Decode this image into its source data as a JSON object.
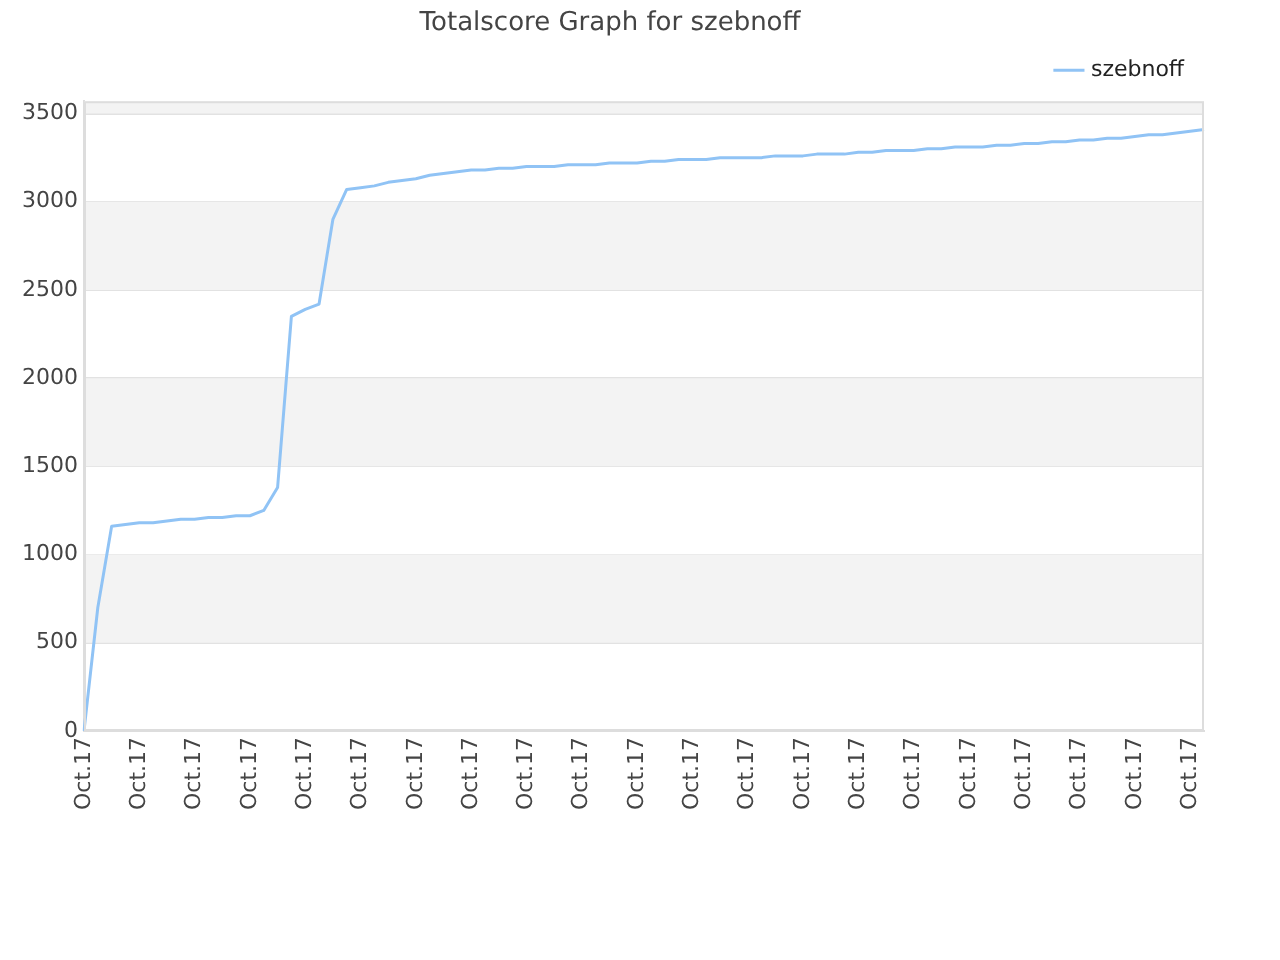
{
  "chart_data": {
    "type": "line",
    "title": "Totalscore Graph for szebnoff",
    "categories": [
      "Oct.17",
      null,
      null,
      null,
      "Oct.17",
      null,
      null,
      null,
      "Oct.17",
      null,
      null,
      null,
      "Oct.17",
      null,
      null,
      null,
      "Oct.17",
      null,
      null,
      null,
      "Oct.17",
      null,
      null,
      null,
      "Oct.17",
      null,
      null,
      null,
      "Oct.17",
      null,
      null,
      null,
      "Oct.17",
      null,
      null,
      null,
      "Oct.17",
      null,
      null,
      null,
      "Oct.17",
      null,
      null,
      null,
      "Oct.17",
      null,
      null,
      null,
      "Oct.17",
      null,
      null,
      null,
      "Oct.17",
      null,
      null,
      null,
      "Oct.17",
      null,
      null,
      null,
      "Oct.17",
      null,
      null,
      null,
      "Oct.17",
      null,
      null,
      null,
      "Oct.17",
      null,
      null,
      null,
      "Oct.17",
      null,
      null,
      null,
      "Oct.17",
      null,
      null,
      null,
      "Oct.17",
      null
    ],
    "series": [
      {
        "name": "szebnoff",
        "color": "#90c3f5",
        "values": [
          0,
          700,
          1160,
          1170,
          1180,
          1180,
          1190,
          1200,
          1200,
          1210,
          1210,
          1220,
          1220,
          1250,
          1380,
          2350,
          2390,
          2420,
          2900,
          3070,
          3080,
          3090,
          3110,
          3120,
          3130,
          3150,
          3160,
          3170,
          3180,
          3180,
          3190,
          3190,
          3200,
          3200,
          3200,
          3210,
          3210,
          3210,
          3220,
          3220,
          3220,
          3230,
          3230,
          3240,
          3240,
          3240,
          3250,
          3250,
          3250,
          3250,
          3260,
          3260,
          3260,
          3270,
          3270,
          3270,
          3280,
          3280,
          3290,
          3290,
          3290,
          3300,
          3300,
          3310,
          3310,
          3310,
          3320,
          3320,
          3330,
          3330,
          3340,
          3340,
          3350,
          3350,
          3360,
          3360,
          3370,
          3380,
          3380,
          3390,
          3400,
          3410
        ]
      }
    ],
    "ylim": [
      0,
      3570
    ],
    "yticks": [
      0,
      500,
      1000,
      1500,
      2000,
      2500,
      3000,
      3500
    ],
    "grid": "y",
    "legend": "top right",
    "marker": "none",
    "line_style": "solid"
  }
}
